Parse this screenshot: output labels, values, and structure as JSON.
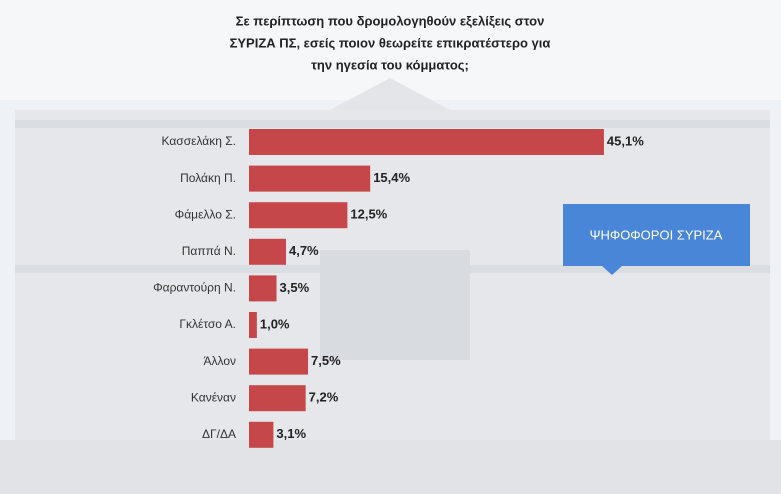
{
  "chart_data": {
    "type": "bar",
    "orientation": "horizontal",
    "title": [
      "Σε περίπτωση που δρομολογηθούν εξελίξεις στον",
      "ΣΥΡΙΖΑ ΠΣ, εσείς ποιον θεωρείτε επικρατέστερο για",
      "την ηγεσία του κόμματος;"
    ],
    "annotation": "ΨΗΦΟΦΟΡΟΙ ΣΥΡΙΖΑ",
    "categories": [
      "Κασσελάκη Σ.",
      "Πολάκη Π.",
      "Φάμελλο Σ.",
      "Παππά Ν.",
      "Φαραντούρη Ν.",
      "Γκλέτσο Α.",
      "Άλλον",
      "Κανέναν",
      "ΔΓ/ΔΑ"
    ],
    "values": [
      45.1,
      15.4,
      12.5,
      4.7,
      3.5,
      1.0,
      7.5,
      7.2,
      3.1
    ],
    "value_labels": [
      "45,1%",
      "15,4%",
      "12,5%",
      "4,7%",
      "3,5%",
      "1,0%",
      "7,5%",
      "7,2%",
      "3,1%"
    ],
    "color": "#c5474a"
  }
}
